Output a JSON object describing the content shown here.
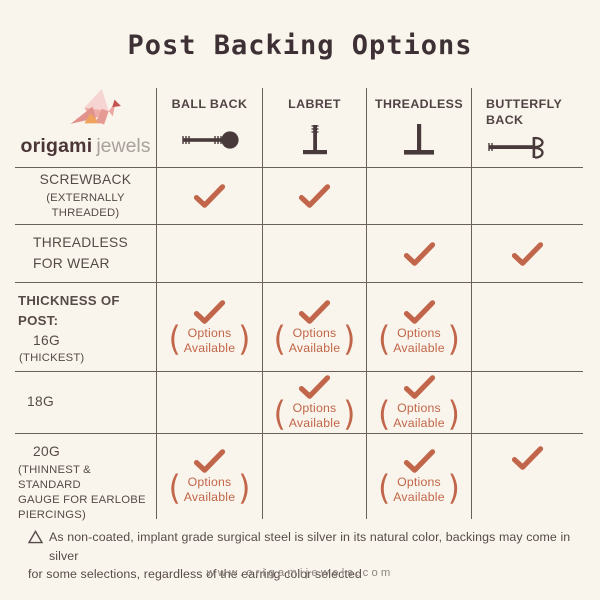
{
  "colors": {
    "background": "#faf5ec",
    "accent": "#c1664a",
    "ink": "#483a3a",
    "grid": "#6b5f5d"
  },
  "header": {
    "title": "Post Backing Options"
  },
  "logo": {
    "icon": "origami-crane-icon",
    "brand_bold": "origami",
    "brand_light": "jewels"
  },
  "table": {
    "options_label_line1": "Options",
    "options_label_line2": "Available",
    "columns": [
      {
        "label": "BALL BACK",
        "icon": "ball-back-icon"
      },
      {
        "label": "LABRET",
        "icon": "labret-icon"
      },
      {
        "label": "THREADLESS",
        "icon": "threadless-icon"
      },
      {
        "label": "BUTTERFLY BACK",
        "icon": "butterfly-back-icon"
      }
    ],
    "rows": [
      {
        "label_lines": [
          "SCREWBACK",
          "(EXTERNALLY THREADED)"
        ],
        "cells": [
          {
            "check": true
          },
          {
            "check": true
          },
          {},
          {}
        ]
      },
      {
        "label_lines": [
          "THREADLESS",
          "FOR WEAR"
        ],
        "cells": [
          {},
          {},
          {
            "check": true
          },
          {
            "check": true
          }
        ]
      },
      {
        "section_heading": "THICKNESS OF POST:",
        "label_lines": [
          "16G",
          "(THICKEST)"
        ],
        "cells": [
          {
            "check": true,
            "options": true
          },
          {
            "check": true,
            "options": true
          },
          {
            "check": true,
            "options": true
          },
          {}
        ]
      },
      {
        "label_lines": [
          "18G"
        ],
        "cells": [
          {},
          {
            "check": true,
            "options": true
          },
          {
            "check": true,
            "options": true
          },
          {}
        ]
      },
      {
        "label_lines": [
          "20G",
          "(THINNEST &  STANDARD",
          "GAUGE FOR EARLOBE",
          "PIERCINGS)"
        ],
        "cells": [
          {
            "check": true,
            "options": true
          },
          {},
          {
            "check": true,
            "options": true
          },
          {
            "check": true,
            "align_top": true
          }
        ]
      }
    ]
  },
  "footer": {
    "note_line1": "As non-coated, implant grade surgical steel is silver in its natural color, backings may come in silver",
    "note_line2": "for some selections, regardless of the earring color selected",
    "website": "www.origamijewels.com"
  }
}
